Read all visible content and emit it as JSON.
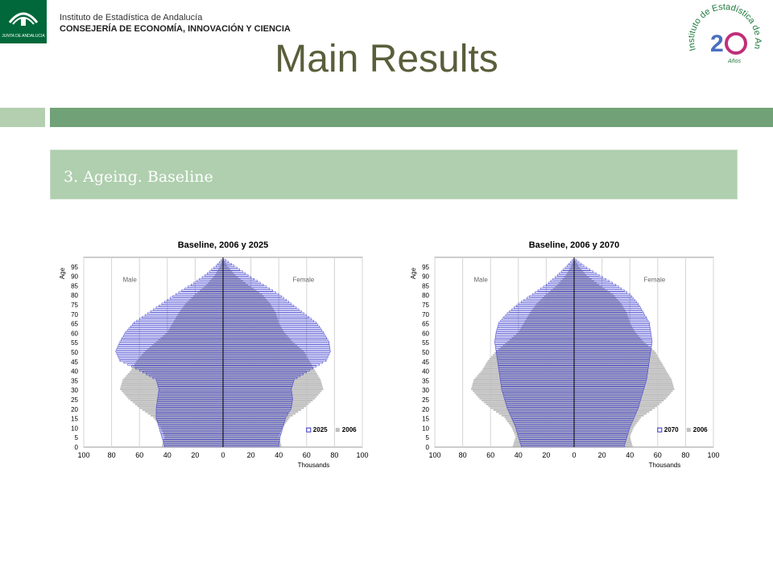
{
  "header": {
    "org_line1": "Instituto de Estadística de Andalucía",
    "org_line2": "CONSEJERÍA DE ECONOMÍA, INNOVACIÓN Y CIENCIA",
    "logo_caption": "JUNTA DE ANDALUCIA",
    "seal_text": "Instituto de Estadística de Andalucía",
    "seal_years": "Años"
  },
  "slide": {
    "title": "Main Results",
    "section_title": "3. Ageing. Baseline"
  },
  "colors": {
    "projection": "#3333cc",
    "base": "#bfbfbf",
    "band_dark": "#71a277",
    "band_light": "#b3cfb0",
    "title": "#5a5e3a"
  },
  "chart_data": [
    {
      "type": "bar",
      "title": "Baseline, 2006 y 2025",
      "ylabel": "Age",
      "xlabel": "Thousands",
      "left_label": "Male",
      "right_label": "Female",
      "x_ticks": [
        "100",
        "80",
        "60",
        "40",
        "20",
        "0",
        "20",
        "40",
        "60",
        "80",
        "100"
      ],
      "xlim": [
        -100,
        100
      ],
      "ylim": [
        0,
        100
      ],
      "y_ticks": [
        0,
        5,
        10,
        15,
        20,
        25,
        30,
        35,
        40,
        45,
        50,
        55,
        60,
        65,
        70,
        75,
        80,
        85,
        90,
        95
      ],
      "legend": [
        "2025",
        "2006"
      ],
      "legend_position": "bottom-right",
      "grid": true,
      "series": [
        {
          "name": "2025",
          "ages": [
            0,
            5,
            10,
            15,
            20,
            25,
            30,
            35,
            40,
            45,
            50,
            55,
            60,
            65,
            70,
            75,
            80,
            85,
            90,
            95,
            99
          ],
          "male": [
            42,
            44,
            46,
            48,
            48,
            47,
            46,
            48,
            60,
            74,
            77,
            74,
            70,
            64,
            54,
            44,
            34,
            23,
            13,
            5,
            0
          ],
          "female": [
            40,
            41,
            43,
            45,
            49,
            50,
            49,
            51,
            62,
            74,
            77,
            76,
            72,
            67,
            58,
            49,
            40,
            29,
            18,
            8,
            0
          ]
        },
        {
          "name": "2006",
          "ages": [
            0,
            5,
            10,
            15,
            20,
            25,
            30,
            35,
            40,
            45,
            50,
            55,
            60,
            65,
            70,
            75,
            80,
            85,
            90,
            95,
            99
          ],
          "male": [
            44,
            42,
            45,
            50,
            60,
            68,
            74,
            72,
            66,
            62,
            56,
            48,
            40,
            36,
            32,
            27,
            20,
            12,
            6,
            2,
            0
          ],
          "female": [
            42,
            40,
            43,
            48,
            58,
            66,
            72,
            70,
            66,
            62,
            58,
            50,
            44,
            40,
            38,
            34,
            28,
            18,
            9,
            3,
            0
          ]
        }
      ]
    },
    {
      "type": "bar",
      "title": "Baseline, 2006 y 2070",
      "ylabel": "Age",
      "xlabel": "Thousands",
      "left_label": "Male",
      "right_label": "Female",
      "x_ticks": [
        "100",
        "80",
        "60",
        "40",
        "20",
        "0",
        "20",
        "40",
        "60",
        "80",
        "100"
      ],
      "xlim": [
        -100,
        100
      ],
      "ylim": [
        0,
        100
      ],
      "y_ticks": [
        0,
        5,
        10,
        15,
        20,
        25,
        30,
        35,
        40,
        45,
        50,
        55,
        60,
        65,
        70,
        75,
        80,
        85,
        90,
        95
      ],
      "legend": [
        "2070",
        "2006"
      ],
      "legend_position": "bottom-right",
      "grid": true,
      "series": [
        {
          "name": "2070",
          "ages": [
            0,
            5,
            10,
            15,
            20,
            25,
            30,
            35,
            40,
            45,
            50,
            55,
            60,
            65,
            70,
            75,
            80,
            85,
            90,
            95,
            99
          ],
          "male": [
            38,
            40,
            42,
            45,
            48,
            50,
            52,
            53,
            54,
            55,
            56,
            57,
            56,
            54,
            48,
            40,
            30,
            20,
            12,
            5,
            0
          ],
          "female": [
            36,
            38,
            40,
            43,
            46,
            48,
            50,
            52,
            53,
            54,
            55,
            56,
            55,
            54,
            50,
            46,
            40,
            30,
            18,
            7,
            0
          ]
        },
        {
          "name": "2006",
          "ages": [
            0,
            5,
            10,
            15,
            20,
            25,
            30,
            35,
            40,
            45,
            50,
            55,
            60,
            65,
            70,
            75,
            80,
            85,
            90,
            95,
            99
          ],
          "male": [
            44,
            42,
            45,
            50,
            60,
            68,
            74,
            72,
            66,
            62,
            56,
            48,
            40,
            36,
            32,
            27,
            20,
            12,
            6,
            2,
            0
          ],
          "female": [
            42,
            40,
            43,
            48,
            58,
            66,
            72,
            70,
            66,
            62,
            58,
            50,
            44,
            40,
            38,
            34,
            28,
            18,
            9,
            3,
            0
          ]
        }
      ]
    }
  ]
}
